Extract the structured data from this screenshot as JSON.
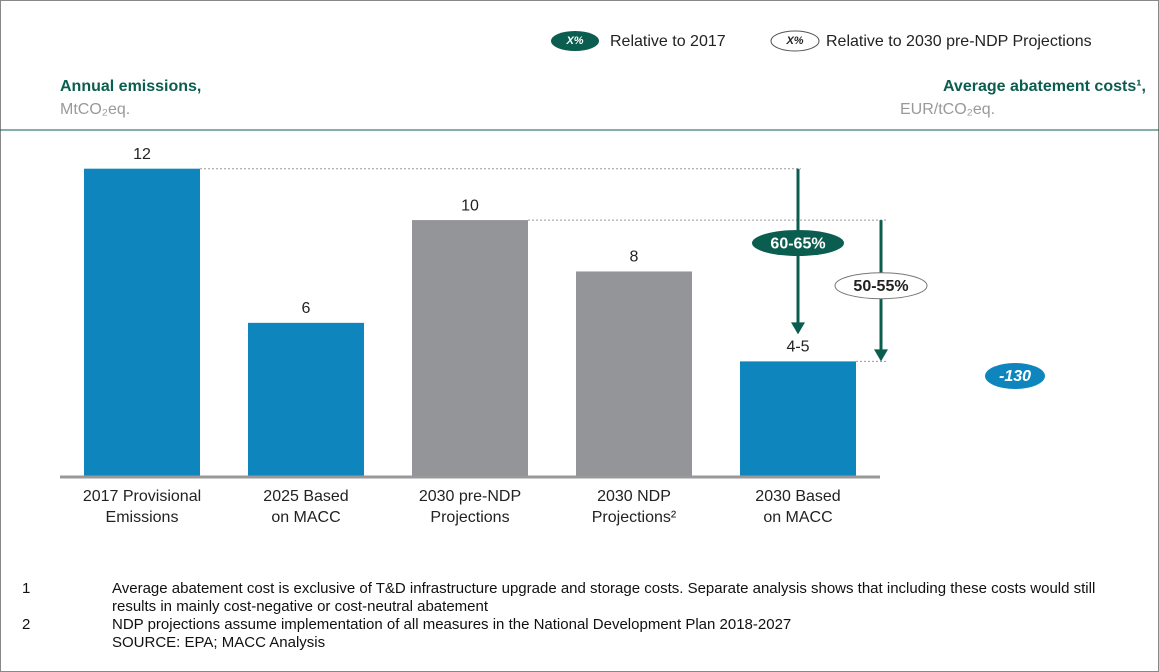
{
  "chart_data": {
    "type": "bar",
    "legend": [
      {
        "marker": "X%",
        "label": "Relative to 2017",
        "color": "#0b5e4f",
        "filled": true
      },
      {
        "marker": "X%",
        "label": "Relative to 2030 pre-NDP Projections",
        "color": "#0b5e4f",
        "filled": false
      }
    ],
    "y_label": {
      "title": "Annual emissions,",
      "unit": "MtCO₂eq."
    },
    "y2_label": {
      "title": "Average abatement costs¹,",
      "unit": "EUR/tCO₂eq."
    },
    "categories": [
      [
        "2017 Provisional",
        "Emissions"
      ],
      [
        "2025 Based",
        "on MACC"
      ],
      [
        "2030 pre-NDP",
        "Projections"
      ],
      [
        "2030 NDP",
        "Projections²"
      ],
      [
        "2030 Based",
        "on MACC"
      ]
    ],
    "values": [
      12,
      6,
      10,
      8,
      4.5
    ],
    "value_labels": [
      "12",
      "6",
      "10",
      "8",
      "4-5"
    ],
    "colors": [
      "#0e86bd",
      "#0e86bd",
      "#939598",
      "#939598",
      "#0e86bd"
    ],
    "ylim": [
      0,
      13
    ],
    "annotations": {
      "vs_2017": "60-65%",
      "vs_pre_ndp": "50-55%",
      "cost": "-130"
    },
    "footnotes": [
      {
        "number": "1",
        "text": "Average abatement cost is exclusive of T&D infrastructure upgrade and storage costs. Separate analysis shows that including these costs would still results in mainly cost-negative or cost-neutral abatement"
      },
      {
        "number": "2",
        "text": "NDP projections assume implementation of all measures in the National Development Plan 2018-2027"
      }
    ],
    "source": "SOURCE: EPA; MACC Analysis"
  }
}
